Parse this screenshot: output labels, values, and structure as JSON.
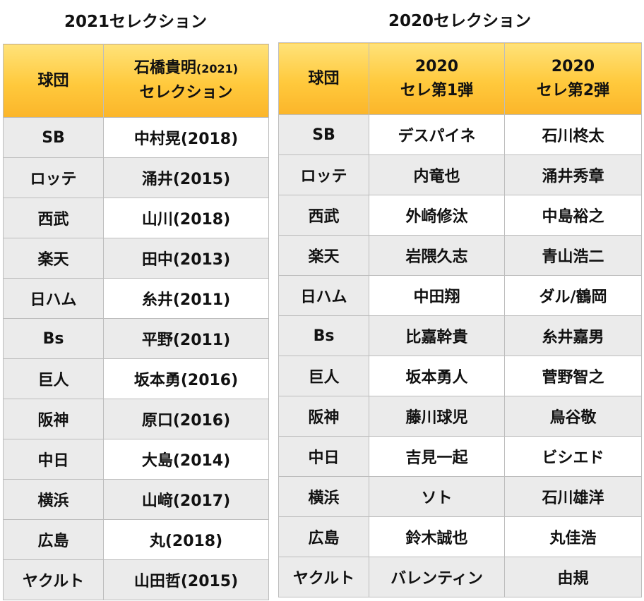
{
  "left": {
    "title": "2021セレクション",
    "header": {
      "team": "球団",
      "selection_name": "石橋貴明",
      "selection_year": "(2021)",
      "selection_label": "セレクション"
    },
    "rows": [
      {
        "team": "SB",
        "player": "中村晃(2018)"
      },
      {
        "team": "ロッテ",
        "player": "涌井(2015)"
      },
      {
        "team": "西武",
        "player": "山川(2018)"
      },
      {
        "team": "楽天",
        "player": "田中(2013)"
      },
      {
        "team": "日ハム",
        "player": "糸井(2011)"
      },
      {
        "team": "Bs",
        "player": "平野(2011)"
      },
      {
        "team": "巨人",
        "player": "坂本勇(2016)"
      },
      {
        "team": "阪神",
        "player": "原口(2016)"
      },
      {
        "team": "中日",
        "player": "大島(2014)"
      },
      {
        "team": "横浜",
        "player": "山﨑(2017)"
      },
      {
        "team": "広島",
        "player": "丸(2018)"
      },
      {
        "team": "ヤクルト",
        "player": "山田哲(2015)"
      }
    ]
  },
  "right": {
    "title": "2020セレクション",
    "header": {
      "team": "球団",
      "col1_year": "2020",
      "col1_label": "セレ第1弾",
      "col2_year": "2020",
      "col2_label": "セレ第2弾"
    },
    "rows": [
      {
        "team": "SB",
        "first": "デスパイネ",
        "second": "石川柊太"
      },
      {
        "team": "ロッテ",
        "first": "内竜也",
        "second": "涌井秀章"
      },
      {
        "team": "西武",
        "first": "外崎修汰",
        "second": "中島裕之"
      },
      {
        "team": "楽天",
        "first": "岩隈久志",
        "second": "青山浩二"
      },
      {
        "team": "日ハム",
        "first": "中田翔",
        "second": "ダル/鶴岡"
      },
      {
        "team": "Bs",
        "first": "比嘉幹貴",
        "second": "糸井嘉男"
      },
      {
        "team": "巨人",
        "first": "坂本勇人",
        "second": "菅野智之"
      },
      {
        "team": "阪神",
        "first": "藤川球児",
        "second": "鳥谷敬"
      },
      {
        "team": "中日",
        "first": "吉見一起",
        "second": "ビシエド"
      },
      {
        "team": "横浜",
        "first": "ソト",
        "second": "石川雄洋"
      },
      {
        "team": "広島",
        "first": "鈴木誠也",
        "second": "丸佳浩"
      },
      {
        "team": "ヤクルト",
        "first": "バレンティン",
        "second": "由規"
      }
    ]
  },
  "colors": {
    "header_top": "#ffe279",
    "header_bottom": "#fbb52a",
    "row_alt": "#ebebeb",
    "border": "#bdbdbd"
  }
}
